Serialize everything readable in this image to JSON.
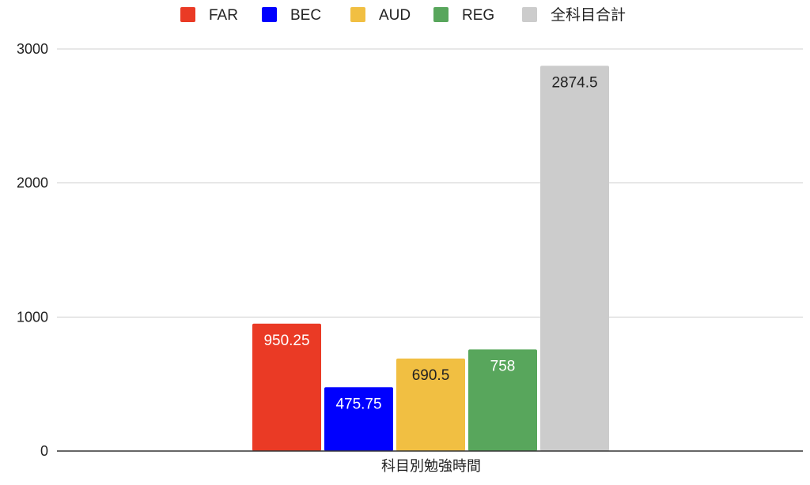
{
  "chart_data": {
    "type": "bar",
    "title": "",
    "xlabel": "",
    "ylabel": "",
    "categories": [
      "科目別勉強時間"
    ],
    "series": [
      {
        "name": "FAR",
        "values": [
          950.25
        ],
        "color": "#ea3a25",
        "label_color": "#ffffff"
      },
      {
        "name": "BEC",
        "values": [
          475.75
        ],
        "color": "#0000fe",
        "label_color": "#ffffff"
      },
      {
        "name": "AUD",
        "values": [
          690.5
        ],
        "color": "#f1bf42",
        "label_color": "#222222"
      },
      {
        "name": "REG",
        "values": [
          758
        ],
        "color": "#58a65c",
        "label_color": "#ffffff"
      },
      {
        "name": "全科目合計",
        "values": [
          2874.5
        ],
        "color": "#cccccc",
        "label_color": "#222222"
      }
    ],
    "data_labels": [
      "950.25",
      "475.75",
      "690.5",
      "758",
      "2874.5"
    ],
    "ylim": [
      0,
      3000
    ],
    "yticks": [
      0,
      1000,
      2000,
      3000
    ],
    "ytick_labels": [
      "0",
      "1000",
      "2000",
      "3000"
    ],
    "grid": true,
    "legend_position": "top"
  }
}
